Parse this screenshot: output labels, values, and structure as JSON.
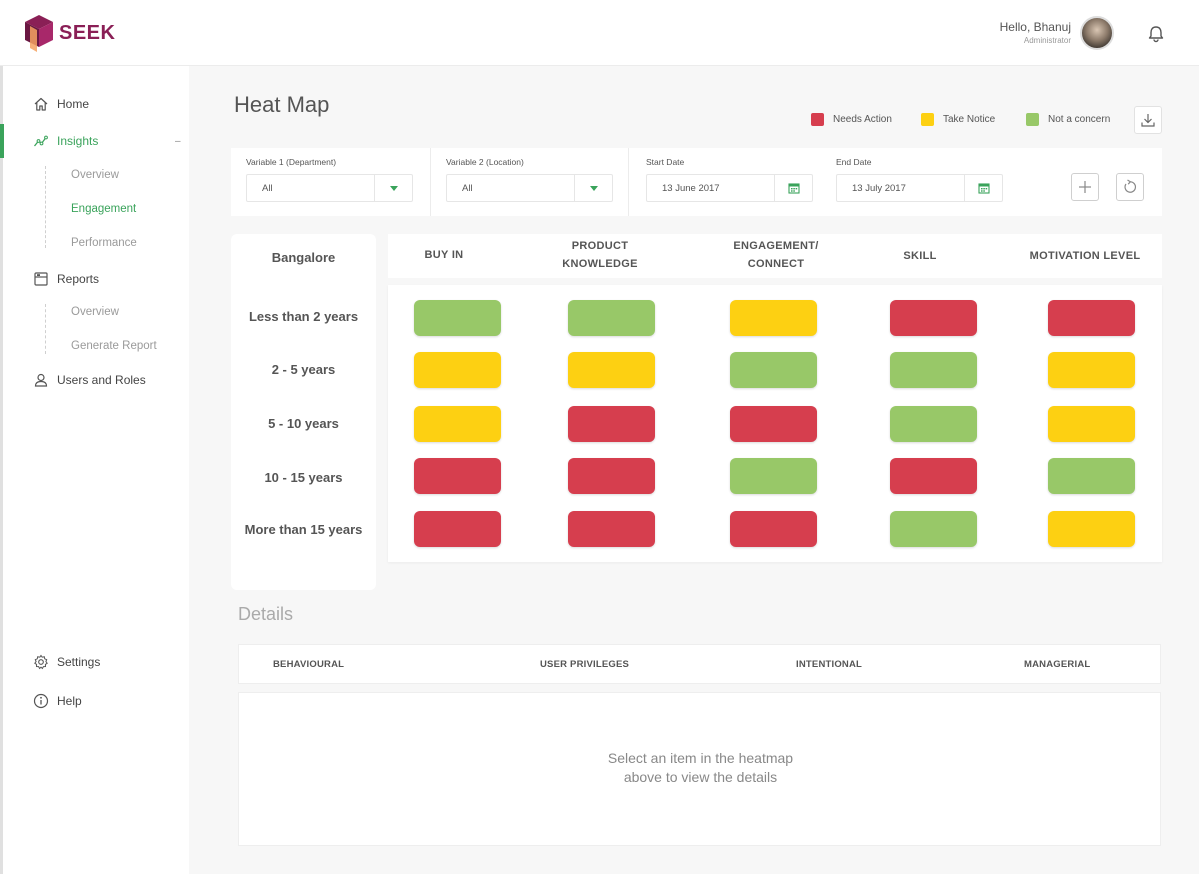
{
  "header": {
    "brand": "SEEK",
    "greeting": "Hello, Bhanuj",
    "role": "Administrator"
  },
  "sidebar": {
    "items": [
      {
        "label": "Home",
        "icon": "home-icon"
      },
      {
        "label": "Insights",
        "icon": "insights-icon",
        "active": true
      },
      {
        "label": "Reports",
        "icon": "reports-icon"
      },
      {
        "label": "Users and Roles",
        "icon": "user-icon"
      }
    ],
    "insights_sub": [
      "Overview",
      "Engagement",
      "Performance"
    ],
    "reports_sub": [
      "Overview",
      "Generate Report"
    ],
    "bottom": [
      {
        "label": "Settings",
        "icon": "gear-icon"
      },
      {
        "label": "Help",
        "icon": "info-icon"
      }
    ]
  },
  "page": {
    "title": "Heat Map"
  },
  "legend": [
    {
      "label": "Needs Action",
      "color": "#d63e4e"
    },
    {
      "label": "Take Notice",
      "color": "#fdd012"
    },
    {
      "label": "Not a concern",
      "color": "#98c868"
    }
  ],
  "filters": {
    "variable1": {
      "label": "Variable 1 (Department)",
      "value": "All"
    },
    "variable2": {
      "label": "Variable 2 (Location)",
      "value": "All"
    },
    "start_date": {
      "label": "Start Date",
      "value": "13 June 2017"
    },
    "end_date": {
      "label": "End Date",
      "value": "13 July 2017"
    }
  },
  "heatmap": {
    "location": "Bangalore",
    "columns": [
      {
        "line1": "BUY IN",
        "line2": ""
      },
      {
        "line1": "PRODUCT",
        "line2": "KNOWLEDGE"
      },
      {
        "line1": "ENGAGEMENT/",
        "line2": "CONNECT"
      },
      {
        "line1": "SKILL",
        "line2": ""
      },
      {
        "line1": "MOTIVATION LEVEL",
        "line2": ""
      }
    ],
    "rows": [
      {
        "label": "Less than 2 years",
        "cells": [
          "green",
          "green",
          "yellow",
          "red",
          "red"
        ]
      },
      {
        "label": "2 - 5 years",
        "cells": [
          "yellow",
          "yellow",
          "green",
          "green",
          "yellow"
        ]
      },
      {
        "label": "5 - 10 years",
        "cells": [
          "yellow",
          "red",
          "red",
          "green",
          "yellow"
        ]
      },
      {
        "label": "10 - 15 years",
        "cells": [
          "red",
          "red",
          "green",
          "red",
          "green"
        ]
      },
      {
        "label": "More than 15 years",
        "cells": [
          "red",
          "red",
          "red",
          "green",
          "yellow"
        ]
      }
    ],
    "status_colors": {
      "red": "#d63e4e",
      "yellow": "#fdd012",
      "green": "#98c868"
    }
  },
  "details": {
    "title": "Details",
    "tabs": [
      "BEHAVIOURAL",
      "USER PRIVILEGES",
      "INTENTIONAL",
      "MANAGERIAL"
    ],
    "message_line1": "Select an item in the heatmap",
    "message_line2": "above to view the details"
  }
}
